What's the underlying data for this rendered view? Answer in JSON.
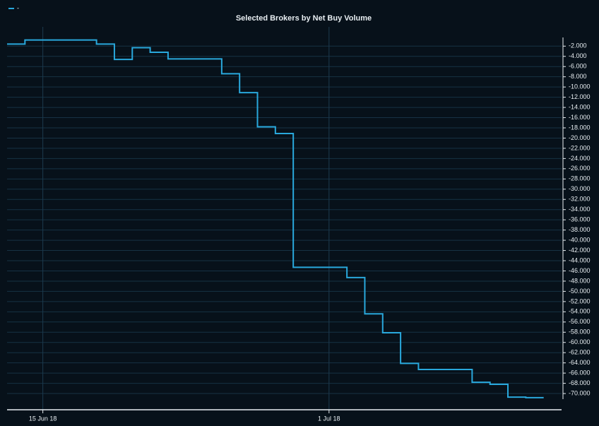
{
  "chart_data": {
    "type": "step",
    "title": "Selected Brokers by Net Buy Volume",
    "legend": "top-left",
    "x": [
      "2018-06-13",
      "2018-06-14",
      "2018-06-18",
      "2018-06-19",
      "2018-06-20",
      "2018-06-21",
      "2018-06-22",
      "2018-06-25",
      "2018-06-26",
      "2018-06-27",
      "2018-06-28",
      "2018-06-29",
      "2018-07-02",
      "2018-07-03",
      "2018-07-04",
      "2018-07-05",
      "2018-07-06",
      "2018-07-09",
      "2018-07-10",
      "2018-07-11",
      "2018-07-12"
    ],
    "series": [
      {
        "name": "-",
        "color": "#29a8dc",
        "values": [
          -1600,
          -800,
          -1600,
          -4600,
          -2300,
          -3200,
          -4500,
          -7400,
          -11100,
          -17800,
          -19100,
          -45300,
          -47300,
          -54400,
          -58100,
          -64100,
          -65300,
          -67800,
          -68200,
          -70700,
          -70800
        ]
      }
    ],
    "xlim": [
      "2018-06-13",
      "2018-07-14"
    ],
    "xticks": [
      {
        "value": "2018-06-15",
        "label": "15 Jun 18"
      },
      {
        "value": "2018-07-01",
        "label": "1 Jul 18"
      }
    ],
    "ylim": [
      -71100,
      -300
    ],
    "yticks": [
      {
        "value": -2000,
        "label": "-2.000"
      },
      {
        "value": -4000,
        "label": "-4.000"
      },
      {
        "value": -6000,
        "label": "-6.000"
      },
      {
        "value": -8000,
        "label": "-8.000"
      },
      {
        "value": -10000,
        "label": "-10.000"
      },
      {
        "value": -12000,
        "label": "-12.000"
      },
      {
        "value": -14000,
        "label": "-14.000"
      },
      {
        "value": -16000,
        "label": "-16.000"
      },
      {
        "value": -18000,
        "label": "-18.000"
      },
      {
        "value": -20000,
        "label": "-20.000"
      },
      {
        "value": -22000,
        "label": "-22.000"
      },
      {
        "value": -24000,
        "label": "-24.000"
      },
      {
        "value": -26000,
        "label": "-26.000"
      },
      {
        "value": -28000,
        "label": "-28.000"
      },
      {
        "value": -30000,
        "label": "-30.000"
      },
      {
        "value": -32000,
        "label": "-32.000"
      },
      {
        "value": -34000,
        "label": "-34.000"
      },
      {
        "value": -36000,
        "label": "-36.000"
      },
      {
        "value": -38000,
        "label": "-38.000"
      },
      {
        "value": -40000,
        "label": "-40.000"
      },
      {
        "value": -42000,
        "label": "-42.000"
      },
      {
        "value": -44000,
        "label": "-44.000"
      },
      {
        "value": -46000,
        "label": "-46.000"
      },
      {
        "value": -48000,
        "label": "-48.000"
      },
      {
        "value": -50000,
        "label": "-50.000"
      },
      {
        "value": -52000,
        "label": "-52.000"
      },
      {
        "value": -54000,
        "label": "-54.000"
      },
      {
        "value": -56000,
        "label": "-56.000"
      },
      {
        "value": -58000,
        "label": "-58.000"
      },
      {
        "value": -60000,
        "label": "-60.000"
      },
      {
        "value": -62000,
        "label": "-62.000"
      },
      {
        "value": -64000,
        "label": "-64.000"
      },
      {
        "value": -66000,
        "label": "-66.000"
      },
      {
        "value": -68000,
        "label": "-68.000"
      },
      {
        "value": -70000,
        "label": "-70.000"
      }
    ],
    "grid": true
  }
}
